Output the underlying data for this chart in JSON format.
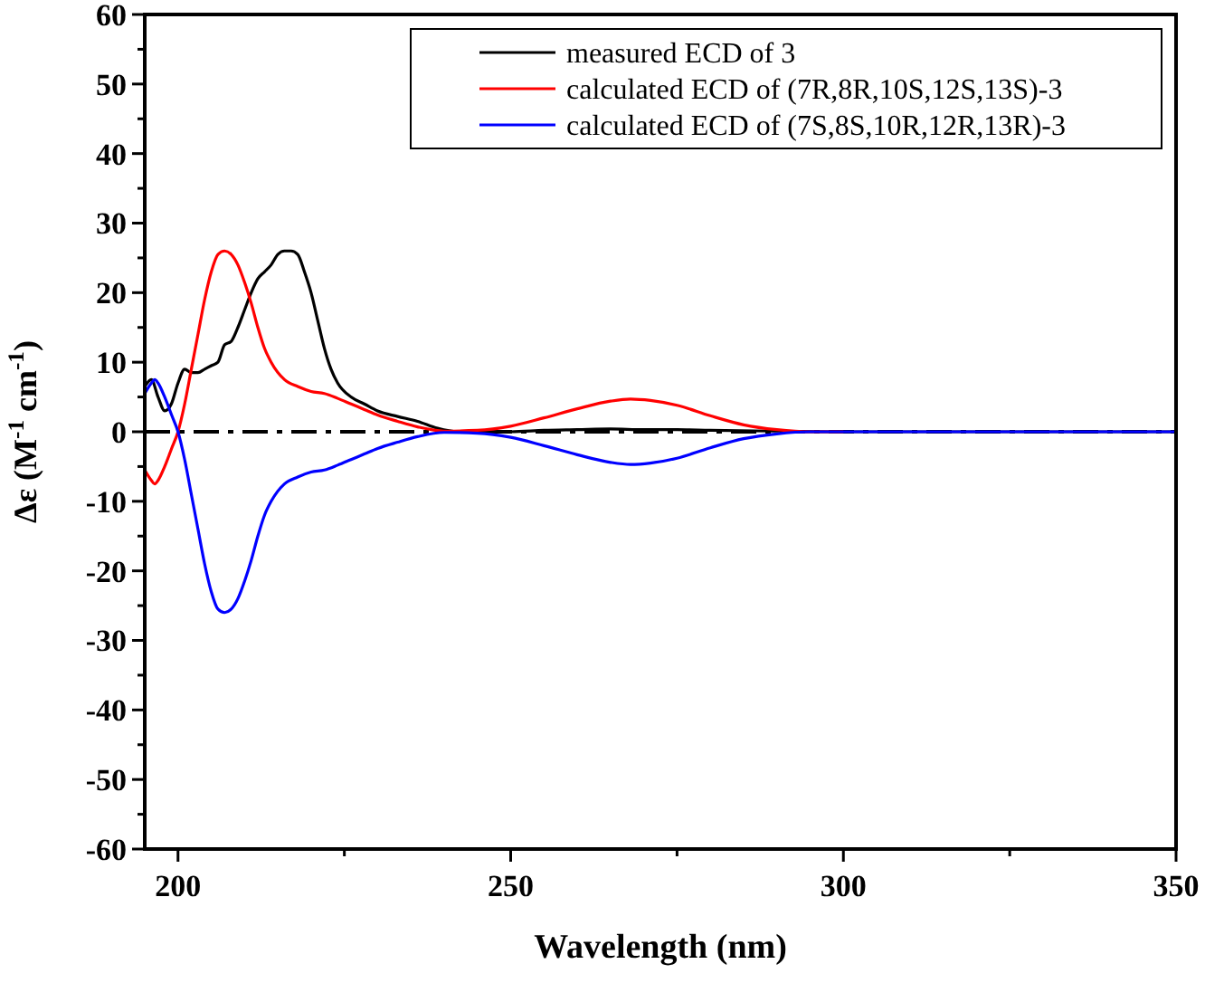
{
  "chart_data": {
    "type": "line",
    "xlabel": "Wavelength (nm)",
    "ylabel": "Δε (M$^{-1}$ cm$^{-1}$)",
    "xlim": [
      195,
      350
    ],
    "xticks": [
      200,
      {
        "value": 225,
        "label": null
      },
      250,
      {
        "value": 275,
        "label": null
      },
      300,
      {
        "value": 325,
        "label": null
      },
      350
    ],
    "ylim": [
      -60,
      60
    ],
    "yticks": [
      -60,
      {
        "value": -55,
        "label": null
      },
      -50,
      {
        "value": -45,
        "label": null
      },
      -40,
      {
        "value": -35,
        "label": null
      },
      -30,
      {
        "value": -25,
        "label": null
      },
      -20,
      {
        "value": -15,
        "label": null
      },
      -10,
      {
        "value": -5,
        "label": null
      },
      0,
      {
        "value": 5,
        "label": null
      },
      10,
      {
        "value": 15,
        "label": null
      },
      20,
      {
        "value": 25,
        "label": null
      },
      30,
      {
        "value": 35,
        "label": null
      },
      40,
      {
        "value": 45,
        "label": null
      },
      50,
      {
        "value": 55,
        "label": null
      },
      60
    ],
    "legend": "top right",
    "grid": false,
    "line_style": "solid",
    "ref_lines": [
      {
        "axis": "y",
        "value": 0,
        "color": "#000000",
        "line_style": "dashed"
      }
    ],
    "series": [
      {
        "name": "measured ECD of 3",
        "color": "#000000",
        "x": [
          195,
          196,
          197,
          198,
          199,
          200,
          201,
          202,
          203,
          204,
          205,
          206,
          207,
          208,
          209,
          210,
          211,
          212,
          213,
          214,
          215,
          216,
          217,
          218,
          219,
          220,
          221,
          222,
          223,
          224,
          226,
          228,
          230,
          233,
          236,
          239,
          242,
          245,
          250,
          255,
          260,
          265,
          270,
          275,
          280,
          290,
          300,
          320,
          350
        ],
        "values": [
          6.5,
          7.5,
          5,
          3,
          4,
          7,
          9,
          8.5,
          8.5,
          9,
          9.5,
          10,
          12.5,
          13,
          15,
          17.5,
          20,
          22,
          23,
          24,
          25.5,
          26,
          26,
          25.5,
          23,
          20,
          16,
          12,
          9,
          7,
          5,
          4,
          3,
          2.2,
          1.5,
          0.5,
          0,
          0,
          0,
          0.2,
          0.3,
          0.4,
          0.3,
          0.3,
          0.2,
          0.1,
          0,
          0,
          0
        ]
      },
      {
        "name": "calculated ECD of (7R,8R,10S,12S,13S)-3",
        "color": "#ff0000",
        "x": [
          195,
          196,
          196.5,
          197,
          198,
          199,
          200,
          201,
          202,
          203,
          204,
          205,
          206,
          207,
          208,
          209,
          210,
          211,
          212,
          213,
          214,
          216,
          218,
          220,
          222,
          224,
          226,
          228,
          230,
          233,
          236,
          240,
          245,
          250,
          255,
          260,
          265,
          268,
          271,
          275,
          280,
          285,
          290,
          295,
          300
        ],
        "values": [
          -5.5,
          -7,
          -7.5,
          -7,
          -5,
          -2.5,
          0,
          4,
          9,
          14,
          19,
          23,
          25.5,
          26,
          25.5,
          24,
          21.5,
          18.5,
          15,
          12,
          10,
          7.5,
          6.5,
          5.8,
          5.5,
          4.8,
          4,
          3.2,
          2.4,
          1.5,
          0.7,
          0.1,
          0.2,
          0.8,
          2,
          3.3,
          4.4,
          4.7,
          4.5,
          3.8,
          2.3,
          1,
          0.3,
          0,
          0
        ]
      },
      {
        "name": "calculated ECD of (7S,8S,10R,12R,13R)-3",
        "color": "#0000ff",
        "x": [
          195,
          196,
          196.5,
          197,
          198,
          199,
          200,
          201,
          202,
          203,
          204,
          205,
          206,
          207,
          208,
          209,
          210,
          211,
          212,
          213,
          214,
          216,
          218,
          220,
          222,
          224,
          226,
          228,
          230,
          233,
          236,
          240,
          245,
          250,
          255,
          260,
          265,
          268,
          271,
          275,
          280,
          285,
          290,
          295,
          300,
          320,
          350
        ],
        "values": [
          5.5,
          7,
          7.5,
          7,
          5,
          2.5,
          0,
          -4,
          -9,
          -14,
          -19,
          -23,
          -25.5,
          -26,
          -25.5,
          -24,
          -21.5,
          -18.5,
          -15,
          -12,
          -10,
          -7.5,
          -6.5,
          -5.8,
          -5.5,
          -4.8,
          -4,
          -3.2,
          -2.4,
          -1.5,
          -0.7,
          -0.1,
          -0.2,
          -0.8,
          -2,
          -3.3,
          -4.4,
          -4.7,
          -4.5,
          -3.8,
          -2.3,
          -1,
          -0.3,
          0,
          0,
          0,
          0
        ]
      }
    ]
  }
}
